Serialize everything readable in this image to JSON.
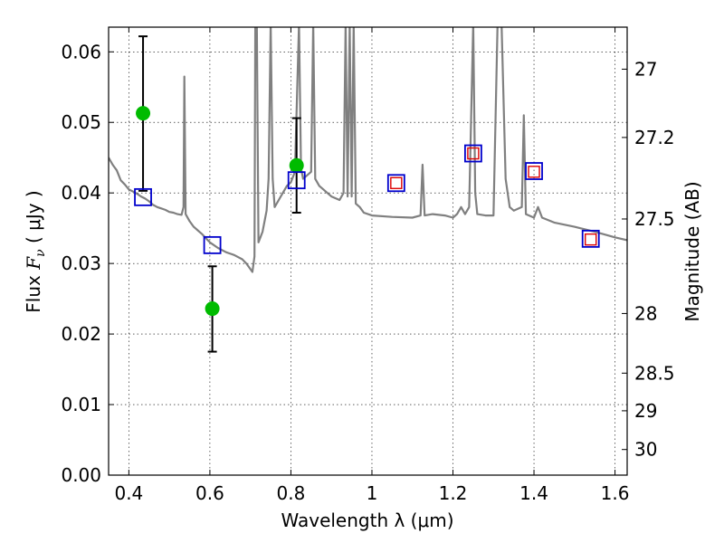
{
  "chart_data": {
    "type": "scatter",
    "title": "",
    "xlabel": "Wavelength  λ (μm)",
    "ylabel": "Flux  F_ν  ( μJy )",
    "ylabel_parts": {
      "prefix": "Flux  ",
      "symbol": "F",
      "subscript": "ν",
      "unit": "  ( μJy )"
    },
    "y2label": "Magnitude (AB)",
    "xlim": [
      0.35,
      1.63
    ],
    "ylim": [
      0.0,
      0.0635
    ],
    "grid": true,
    "grid_style": "dotted",
    "xticks": [
      {
        "value": 0.4,
        "label": "0.4"
      },
      {
        "value": 0.6,
        "label": "0.6"
      },
      {
        "value": 0.8,
        "label": "0.8"
      },
      {
        "value": 1.0,
        "label": "1"
      },
      {
        "value": 1.2,
        "label": "1.2"
      },
      {
        "value": 1.4,
        "label": "1.4"
      },
      {
        "value": 1.6,
        "label": "1.6"
      }
    ],
    "yticks": [
      {
        "value": 0.0,
        "label": "0.00"
      },
      {
        "value": 0.01,
        "label": "0.01"
      },
      {
        "value": 0.02,
        "label": "0.02"
      },
      {
        "value": 0.03,
        "label": "0.03"
      },
      {
        "value": 0.04,
        "label": "0.04"
      },
      {
        "value": 0.05,
        "label": "0.05"
      },
      {
        "value": 0.06,
        "label": "0.06"
      }
    ],
    "y2ticks": [
      {
        "value": 27.0,
        "label": "27"
      },
      {
        "value": 27.2,
        "label": "27.2"
      },
      {
        "value": 27.5,
        "label": "27.5"
      },
      {
        "value": 28.0,
        "label": "28"
      },
      {
        "value": 28.5,
        "label": "28.5"
      },
      {
        "value": 29.0,
        "label": "29"
      },
      {
        "value": 30.0,
        "label": "30"
      }
    ],
    "colors": {
      "spectrum": "#808080",
      "observed": "#00bb00",
      "model_box": "#0000cc",
      "observed_box": "#dd0000",
      "errorbar": "#000000"
    },
    "series": [
      {
        "kind": "line",
        "style": "spectrum",
        "points": [
          [
            0.35,
            0.045
          ],
          [
            0.36,
            0.044
          ],
          [
            0.37,
            0.0432
          ],
          [
            0.38,
            0.0418
          ],
          [
            0.39,
            0.0412
          ],
          [
            0.4,
            0.0405
          ],
          [
            0.41,
            0.0402
          ],
          [
            0.42,
            0.0399
          ],
          [
            0.43,
            0.0395
          ],
          [
            0.44,
            0.0392
          ],
          [
            0.45,
            0.0388
          ],
          [
            0.46,
            0.0383
          ],
          [
            0.47,
            0.038
          ],
          [
            0.48,
            0.0378
          ],
          [
            0.49,
            0.0376
          ],
          [
            0.5,
            0.0373
          ],
          [
            0.51,
            0.0372
          ],
          [
            0.52,
            0.037
          ],
          [
            0.53,
            0.0369
          ],
          [
            0.535,
            0.038
          ],
          [
            0.537,
            0.0565
          ],
          [
            0.54,
            0.037
          ],
          [
            0.55,
            0.036
          ],
          [
            0.56,
            0.0352
          ],
          [
            0.57,
            0.0347
          ],
          [
            0.58,
            0.0342
          ],
          [
            0.59,
            0.0336
          ],
          [
            0.6,
            0.033
          ],
          [
            0.62,
            0.0322
          ],
          [
            0.64,
            0.0316
          ],
          [
            0.66,
            0.0312
          ],
          [
            0.68,
            0.0306
          ],
          [
            0.69,
            0.03
          ],
          [
            0.7,
            0.0292
          ],
          [
            0.705,
            0.0288
          ],
          [
            0.71,
            0.031
          ],
          [
            0.712,
            0.064
          ],
          [
            0.716,
            0.064
          ],
          [
            0.72,
            0.033
          ],
          [
            0.73,
            0.0345
          ],
          [
            0.74,
            0.0375
          ],
          [
            0.745,
            0.042
          ],
          [
            0.75,
            0.064
          ],
          [
            0.755,
            0.042
          ],
          [
            0.76,
            0.038
          ],
          [
            0.77,
            0.039
          ],
          [
            0.78,
            0.04
          ],
          [
            0.79,
            0.041
          ],
          [
            0.8,
            0.0415
          ],
          [
            0.81,
            0.043
          ],
          [
            0.82,
            0.064
          ],
          [
            0.825,
            0.0435
          ],
          [
            0.83,
            0.042
          ],
          [
            0.84,
            0.0425
          ],
          [
            0.85,
            0.043
          ],
          [
            0.855,
            0.064
          ],
          [
            0.86,
            0.042
          ],
          [
            0.87,
            0.041
          ],
          [
            0.88,
            0.0405
          ],
          [
            0.89,
            0.04
          ],
          [
            0.9,
            0.0395
          ],
          [
            0.92,
            0.039
          ],
          [
            0.93,
            0.04
          ],
          [
            0.935,
            0.064
          ],
          [
            0.94,
            0.0395
          ],
          [
            0.945,
            0.064
          ],
          [
            0.95,
            0.0395
          ],
          [
            0.955,
            0.064
          ],
          [
            0.96,
            0.0385
          ],
          [
            0.97,
            0.038
          ],
          [
            0.98,
            0.0372
          ],
          [
            1.0,
            0.0368
          ],
          [
            1.05,
            0.0366
          ],
          [
            1.1,
            0.0365
          ],
          [
            1.12,
            0.0368
          ],
          [
            1.125,
            0.044
          ],
          [
            1.13,
            0.0368
          ],
          [
            1.15,
            0.037
          ],
          [
            1.18,
            0.0368
          ],
          [
            1.2,
            0.0365
          ],
          [
            1.21,
            0.037
          ],
          [
            1.22,
            0.038
          ],
          [
            1.23,
            0.037
          ],
          [
            1.24,
            0.038
          ],
          [
            1.25,
            0.064
          ],
          [
            1.255,
            0.04
          ],
          [
            1.26,
            0.037
          ],
          [
            1.28,
            0.0368
          ],
          [
            1.3,
            0.0368
          ],
          [
            1.31,
            0.064
          ],
          [
            1.32,
            0.064
          ],
          [
            1.33,
            0.042
          ],
          [
            1.34,
            0.038
          ],
          [
            1.35,
            0.0375
          ],
          [
            1.37,
            0.038
          ],
          [
            1.375,
            0.051
          ],
          [
            1.38,
            0.037
          ],
          [
            1.4,
            0.0365
          ],
          [
            1.41,
            0.038
          ],
          [
            1.42,
            0.0365
          ],
          [
            1.45,
            0.0358
          ],
          [
            1.5,
            0.0352
          ],
          [
            1.55,
            0.0345
          ],
          [
            1.6,
            0.0337
          ],
          [
            1.63,
            0.0333
          ]
        ]
      },
      {
        "kind": "scatter",
        "style": "observed",
        "points": [
          {
            "x": 0.435,
            "y": 0.0513,
            "yerr_low": 0.0403,
            "yerr_high": 0.0622
          },
          {
            "x": 0.606,
            "y": 0.0236,
            "yerr_low": 0.0175,
            "yerr_high": 0.0296
          },
          {
            "x": 0.814,
            "y": 0.0439,
            "yerr_low": 0.0372,
            "yerr_high": 0.0506
          }
        ]
      },
      {
        "kind": "scatter",
        "style": "model_box",
        "points": [
          {
            "x": 0.435,
            "y": 0.0394
          },
          {
            "x": 0.606,
            "y": 0.0326
          },
          {
            "x": 0.814,
            "y": 0.0418
          },
          {
            "x": 1.06,
            "y": 0.0414
          },
          {
            "x": 1.25,
            "y": 0.0456
          },
          {
            "x": 1.4,
            "y": 0.0431
          },
          {
            "x": 1.54,
            "y": 0.0335
          }
        ]
      },
      {
        "kind": "scatter",
        "style": "observed_box",
        "points": [
          {
            "x": 1.06,
            "y": 0.0414
          },
          {
            "x": 1.25,
            "y": 0.0456
          },
          {
            "x": 1.4,
            "y": 0.043
          },
          {
            "x": 1.54,
            "y": 0.0334
          }
        ]
      }
    ]
  }
}
